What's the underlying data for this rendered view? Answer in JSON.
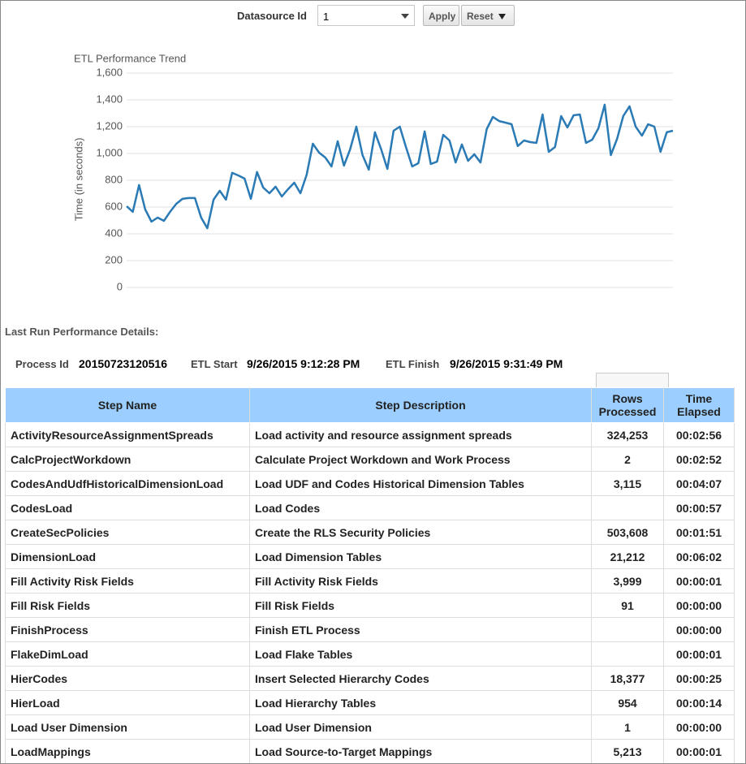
{
  "filter": {
    "label": "Datasource Id",
    "selected": "1",
    "apply": "Apply",
    "reset": "Reset"
  },
  "chart_data": {
    "type": "line",
    "title": "ETL Performance Trend",
    "y_label": "Time (in seconds)",
    "color": "#2a7ab5",
    "grid": true,
    "ylim": [
      0,
      1600
    ],
    "yticks": [
      0,
      200,
      400,
      600,
      800,
      {
        "value": 1000,
        "label": "1,000"
      },
      {
        "value": 1200,
        "label": "1,200"
      },
      {
        "value": 1400,
        "label": "1,400"
      },
      {
        "value": 1600,
        "label": "1,600"
      }
    ],
    "values": [
      606,
      564,
      764,
      582,
      491,
      521,
      497,
      564,
      624,
      661,
      667,
      667,
      521,
      442,
      655,
      721,
      655,
      855,
      836,
      812,
      661,
      861,
      745,
      703,
      752,
      679,
      733,
      782,
      703,
      842,
      1073,
      1006,
      970,
      903,
      1091,
      909,
      1030,
      1200,
      988,
      879,
      1158,
      1030,
      885,
      1170,
      1200,
      1048,
      903,
      927,
      1164,
      921,
      939,
      1139,
      1097,
      933,
      1067,
      945,
      994,
      933,
      1182,
      1273,
      1242,
      1230,
      1218,
      1055,
      1097,
      1085,
      1079,
      1291,
      1012,
      1048,
      1279,
      1194,
      1285,
      1291,
      1079,
      1103,
      1188,
      1364,
      988,
      1109,
      1279,
      1352,
      1200,
      1133,
      1218,
      1200,
      1012,
      1158,
      1170
    ]
  },
  "details": {
    "heading": "Last Run Performance Details:",
    "process_id_label": "Process Id",
    "process_id": "20150723120516",
    "etl_start_label": "ETL Start",
    "etl_start": "9/26/2015 9:12:28 PM",
    "etl_finish_label": "ETL Finish",
    "etl_finish": "9/26/2015 9:31:49 PM"
  },
  "table": {
    "columns": [
      "Step Name",
      "Step Description",
      "Rows Processed",
      "Time Elapsed"
    ],
    "rows": [
      [
        "ActivityResourceAssignmentSpreads",
        "Load activity and resource assignment spreads",
        "324,253",
        "00:02:56"
      ],
      [
        "CalcProjectWorkdown",
        "Calculate Project Workdown and Work Process",
        "2",
        "00:02:52"
      ],
      [
        "CodesAndUdfHistoricalDimensionLoad",
        "Load UDF and Codes Historical Dimension Tables",
        "3,115",
        "00:04:07"
      ],
      [
        "CodesLoad",
        "Load Codes",
        null,
        "00:00:57"
      ],
      [
        "CreateSecPolicies",
        "Create the RLS Security Policies",
        "503,608",
        "00:01:51"
      ],
      [
        "DimensionLoad",
        "Load Dimension Tables",
        "21,212",
        "00:06:02"
      ],
      [
        "Fill Activity Risk Fields",
        "Fill Activity Risk Fields",
        "3,999",
        "00:00:01"
      ],
      [
        "Fill Risk Fields",
        "Fill Risk Fields",
        "91",
        "00:00:00"
      ],
      [
        "FinishProcess",
        "Finish ETL Process",
        null,
        "00:00:00"
      ],
      [
        "FlakeDimLoad",
        "Load Flake Tables",
        null,
        "00:00:01"
      ],
      [
        "HierCodes",
        "Insert Selected Hierarchy Codes",
        "18,377",
        "00:00:25"
      ],
      [
        "HierLoad",
        "Load Hierarchy Tables",
        "954",
        "00:00:14"
      ],
      [
        "Load User Dimension",
        "Load User Dimension",
        "1",
        "00:00:00"
      ],
      [
        "LoadMappings",
        "Load Source-to-Target Mappings",
        "5,213",
        "00:00:01"
      ]
    ]
  }
}
